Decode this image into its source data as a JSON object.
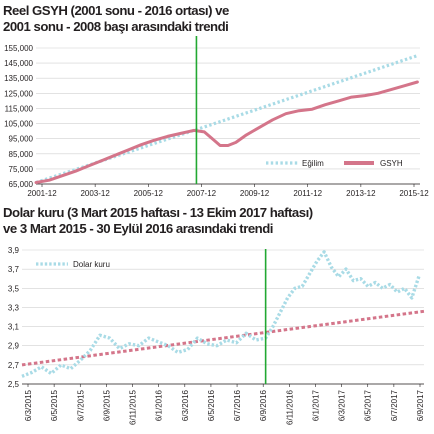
{
  "colors": {
    "trend_chart1": "#a9dbe6",
    "gsyh": "#d4758a",
    "dolar": "#a9dbe6",
    "trend_chart2": "#d4758a",
    "marker": "#22a832",
    "grid": "#d0d0d0",
    "axis": "#231f20"
  },
  "chart_data": [
    {
      "type": "line",
      "title": "Reel GSYH (2001 sonu - 2016 ortası) ve 2001 sonu - 2008 başı arasındaki trendi",
      "title_lines": [
        "Reel GSYH (2001 sonu - 2016 ortası) ve",
        "2001 sonu - 2008 başı arasındaki trendi"
      ],
      "xlabel": "",
      "ylabel": "",
      "x_ticks": [
        "2001-12",
        "2003-12",
        "2005-12",
        "2007-12",
        "2009-12",
        "2011-12",
        "2013-12",
        "2015-12"
      ],
      "y_ticks": [
        "65,000",
        "75,000",
        "85,000",
        "95,000",
        "105,000",
        "115,000",
        "125,000",
        "135,000",
        "145,000",
        "155,000"
      ],
      "ylim": [
        65000,
        155000
      ],
      "xlim": [
        2002.0,
        2016.6
      ],
      "grid": "horizontal",
      "legend_position": "bottom-right",
      "vertical_marker_x": 2008.1,
      "series": [
        {
          "name": "Eğilim",
          "style": "dotted",
          "x": [
            2002.0,
            2008.1,
            2016.5
          ],
          "values": [
            66000,
            101000,
            150000
          ]
        },
        {
          "name": "GSYH",
          "style": "solid",
          "x": [
            2002.0,
            2002.5,
            2003.0,
            2003.5,
            2004.0,
            2004.5,
            2005.0,
            2005.5,
            2006.0,
            2006.5,
            2007.0,
            2007.5,
            2008.0,
            2008.4,
            2008.8,
            2009.0,
            2009.3,
            2009.6,
            2010.0,
            2010.5,
            2011.0,
            2011.5,
            2012.0,
            2012.5,
            2013.0,
            2013.5,
            2014.0,
            2014.5,
            2015.0,
            2015.5,
            2016.0,
            2016.5
          ],
          "values": [
            66000,
            67500,
            70500,
            73500,
            77000,
            80500,
            84000,
            87500,
            91000,
            94000,
            96500,
            98500,
            100500,
            99500,
            93500,
            90500,
            90500,
            92500,
            97500,
            102500,
            107500,
            111500,
            113500,
            114500,
            117500,
            120000,
            122500,
            123500,
            125000,
            127500,
            130000,
            132500
          ]
        }
      ]
    },
    {
      "type": "line",
      "title": "Dolar kuru (3 Mart 2015 haftası - 13 Ekim 2017 haftası) ve 3 Mart 2015 - 30 Eylül 2016 arasındaki trendi",
      "title_lines": [
        "Dolar kuru (3 Mart 2015 haftası - 13 Ekim 2017 haftası)",
        "ve 3 Mart 2015 - 30 Eylül 2016 arasındaki trendi"
      ],
      "xlabel": "",
      "ylabel": "",
      "x_ticks": [
        "6/3/2015",
        "6/5/2015",
        "6/7/2015",
        "6/9/2015",
        "6/11/2015",
        "6/1/2016",
        "6/3/2016",
        "6/5/2016",
        "6/7/2016",
        "6/9/2016",
        "6/11/2016",
        "6/1/2017",
        "6/3/2017",
        "6/5/2017",
        "6/7/2017",
        "6/9/2017"
      ],
      "y_ticks": [
        "2,5",
        "2,7",
        "2,9",
        "3,1",
        "3,3",
        "3,5",
        "3,7",
        "3,9"
      ],
      "ylim": [
        2.5,
        3.9
      ],
      "xlim": [
        0,
        16.5
      ],
      "grid": "horizontal",
      "legend_position": "top-left",
      "vertical_marker_x": 10.0,
      "series": [
        {
          "name": "Dolar kuru",
          "style": "dotted",
          "x": [
            0.0,
            0.4,
            0.8,
            1.2,
            1.6,
            2.0,
            2.4,
            2.8,
            3.2,
            3.6,
            4.0,
            4.4,
            4.8,
            5.2,
            5.6,
            6.0,
            6.4,
            6.8,
            7.2,
            7.6,
            8.0,
            8.4,
            8.8,
            9.2,
            9.6,
            10.0,
            10.3,
            10.6,
            10.9,
            11.2,
            11.5,
            11.8,
            12.1,
            12.4,
            12.7,
            13.0,
            13.3,
            13.6,
            13.9,
            14.2,
            14.5,
            14.8,
            15.1,
            15.4,
            15.7,
            16.0,
            16.3
          ],
          "values": [
            2.58,
            2.62,
            2.68,
            2.61,
            2.7,
            2.66,
            2.75,
            2.85,
            3.01,
            2.98,
            2.87,
            2.92,
            2.9,
            2.98,
            2.94,
            2.9,
            2.83,
            2.86,
            2.98,
            2.92,
            2.9,
            2.96,
            2.93,
            3.03,
            2.96,
            2.98,
            3.1,
            3.25,
            3.4,
            3.5,
            3.52,
            3.65,
            3.78,
            3.88,
            3.72,
            3.62,
            3.7,
            3.58,
            3.6,
            3.52,
            3.56,
            3.5,
            3.54,
            3.46,
            3.5,
            3.4,
            3.63
          ]
        },
        {
          "name": "",
          "style": "dashed",
          "x": [
            0.0,
            16.5
          ],
          "values": [
            2.7,
            3.26
          ]
        }
      ]
    }
  ]
}
